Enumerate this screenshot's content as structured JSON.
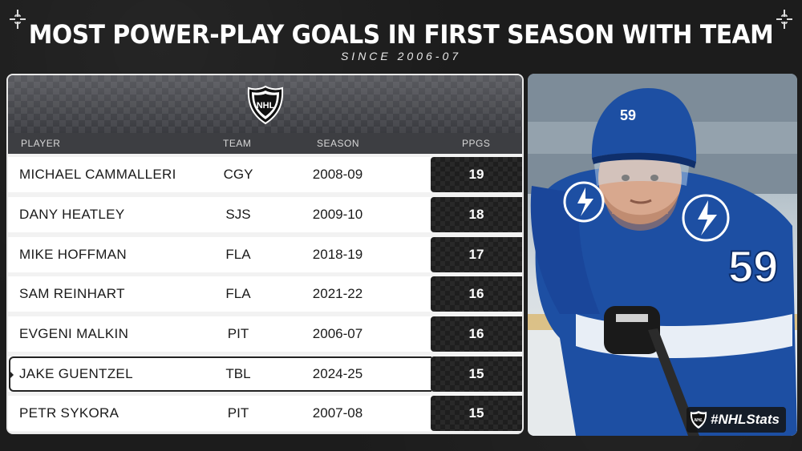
{
  "header": {
    "title": "MOST POWER-PLAY GOALS IN FIRST SEASON WITH TEAM",
    "subtitle": "SINCE 2006-07"
  },
  "table": {
    "logo_icon": "nhl-shield-logo",
    "columns": {
      "player": "PLAYER",
      "team": "TEAM",
      "season": "SEASON",
      "ppgs": "PPGS"
    },
    "rows": [
      {
        "player": "MICHAEL CAMMALLERI",
        "team": "CGY",
        "season": "2008-09",
        "ppgs": "19"
      },
      {
        "player": "DANY HEATLEY",
        "team": "SJS",
        "season": "2009-10",
        "ppgs": "18"
      },
      {
        "player": "MIKE HOFFMAN",
        "team": "FLA",
        "season": "2018-19",
        "ppgs": "17"
      },
      {
        "player": "SAM REINHART",
        "team": "FLA",
        "season": "2021-22",
        "ppgs": "16"
      },
      {
        "player": "EVGENI MALKIN",
        "team": "PIT",
        "season": "2006-07",
        "ppgs": "16"
      },
      {
        "player": "JAKE GUENTZEL",
        "team": "TBL",
        "season": "2024-25",
        "ppgs": "15"
      },
      {
        "player": "PETR SYKORA",
        "team": "PIT",
        "season": "2007-08",
        "ppgs": "15"
      }
    ],
    "highlighted_row": "JAKE GUENTZEL"
  },
  "photo": {
    "jersey_number": "59",
    "helmet_number": "59",
    "jersey_color": "#1d4fa3"
  },
  "footer": {
    "hashtag": "#NHLStats"
  },
  "colors": {
    "background": "#1c1c1c",
    "ppgs_cell": "#1e1e1e",
    "header_bar": "#3d3e42"
  }
}
